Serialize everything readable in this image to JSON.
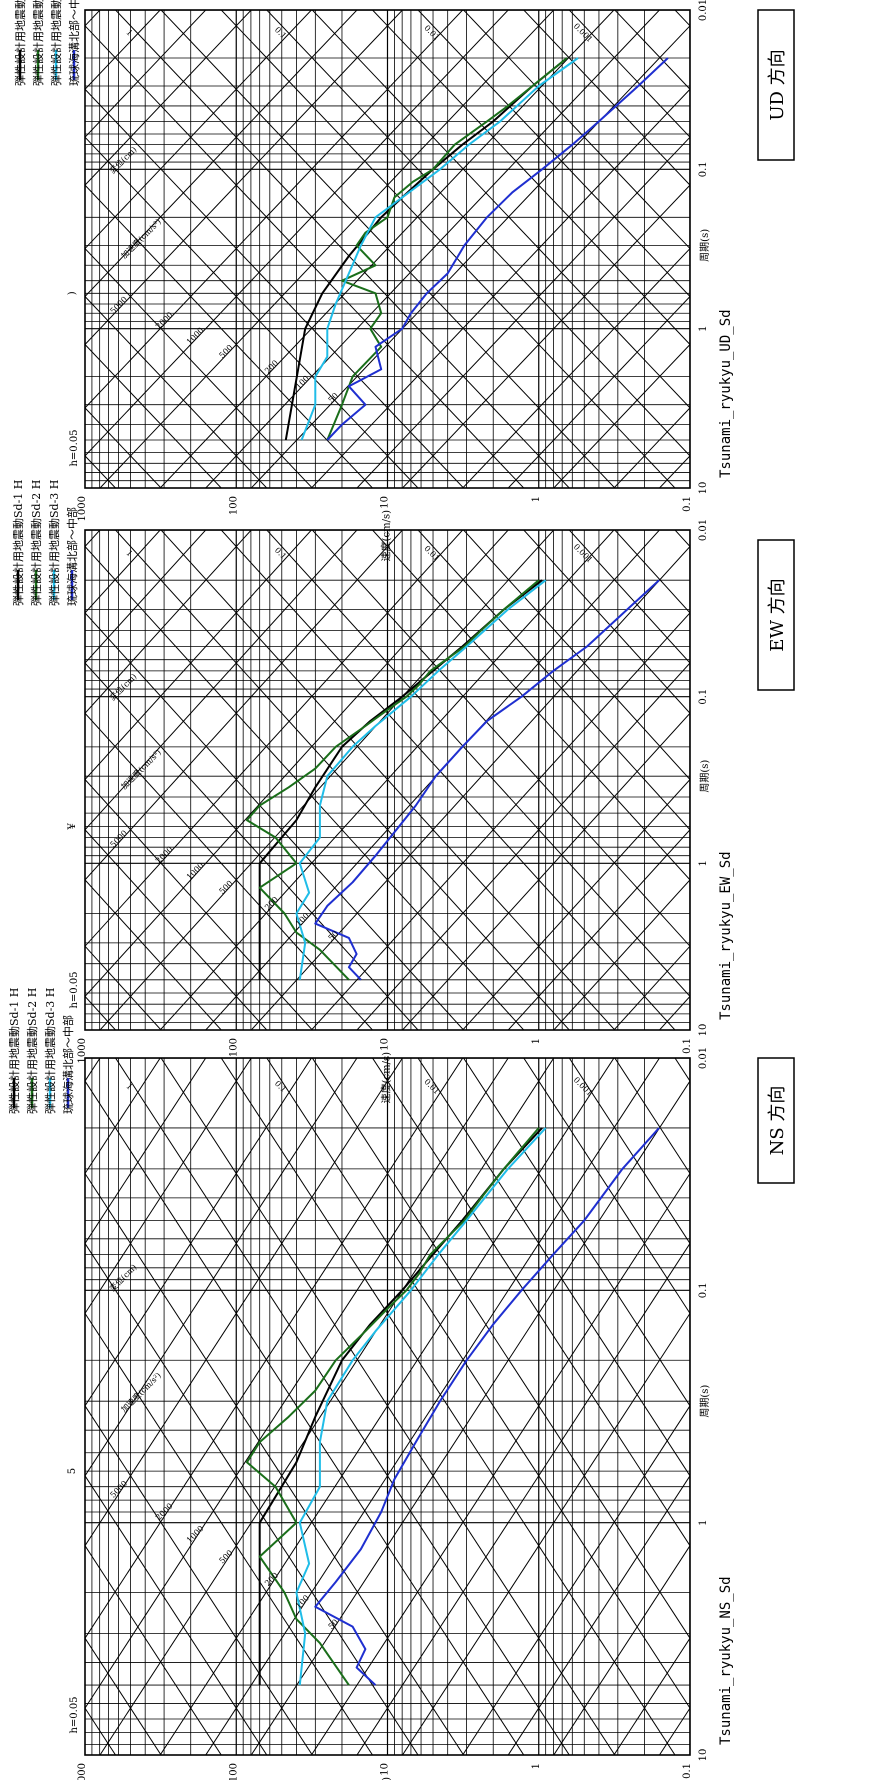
{
  "panels": [
    {
      "id": "ns",
      "direction_label": "NS 方向",
      "record_label": "Tsunami_ryukyu_NS_Sd",
      "damping_label": "h=0.05",
      "stray_mark": "5",
      "legend": [
        {
          "label": "弾性設計用地震動Sd-1 H",
          "color": "#000000"
        },
        {
          "label": "弾性設計用地震動Sd-2 H",
          "color": "#1a6e1a"
        },
        {
          "label": "弾性設計用地震動Sd-3 H",
          "color": "#20bde8"
        },
        {
          "label": "琉球海溝北部～中部",
          "color": "#1f2fd0"
        }
      ]
    },
    {
      "id": "ew",
      "direction_label": "EW 方向",
      "record_label": "Tsunami_ryukyu_EW_Sd",
      "damping_label": "h=0.05",
      "stray_mark": "¥",
      "legend": [
        {
          "label": "弾性設計用地震動Sd-1 H",
          "color": "#000000"
        },
        {
          "label": "弾性設計用地震動Sd-2 H",
          "color": "#1a6e1a"
        },
        {
          "label": "弾性設計用地震動Sd-3 H",
          "color": "#20bde8"
        },
        {
          "label": "琉球海溝北部～中部",
          "color": "#1f2fd0"
        }
      ]
    },
    {
      "id": "ud",
      "direction_label": "UD 方向",
      "record_label": "Tsunami_ryukyu_UD_Sd",
      "damping_label": "h=0.05",
      "stray_mark": ")",
      "legend": [
        {
          "label": "弾性設計用地震動Sd-1 V",
          "color": "#000000"
        },
        {
          "label": "弾性設計用地震動Sd-2 V",
          "color": "#1a6e1a"
        },
        {
          "label": "弾性設計用地震動Sd-3 V",
          "color": "#20bde8"
        },
        {
          "label": "琉球海溝北部～中部",
          "color": "#1f2fd0"
        }
      ]
    }
  ],
  "chart_data": [
    {
      "type": "line",
      "panel": "ns",
      "title": "Tsunami_ryukyu_NS_Sd",
      "xlabel": "周期(s)",
      "ylabel": "速度(cm/s)",
      "x_scale": "log",
      "y_scale": "log",
      "xlim": [
        0.01,
        10
      ],
      "ylim": [
        0.1,
        1000
      ],
      "x_ticks": [
        "0.01",
        "0.1",
        "1",
        "10"
      ],
      "y_ticks": [
        "0.1",
        "1",
        "10",
        "100",
        "1000"
      ],
      "grid": true,
      "tripartite_labels": {
        "acceleration_axis": "加速度(cm/s²)",
        "displacement_axis": "変位(cm)",
        "acceleration_values": [
          "10000",
          "5000",
          "2000",
          "1000",
          "500",
          "200",
          "100",
          "50",
          "20",
          "10",
          "5",
          "2"
        ],
        "displacement_values": [
          "100",
          "10",
          "1",
          "0.1",
          "0.01",
          "0.001"
        ]
      },
      "series": [
        {
          "name": "弾性設計用地震動Sd-1 H",
          "color": "#000000",
          "x": [
            0.02,
            0.03,
            0.05,
            0.07,
            0.1,
            0.14,
            0.2,
            0.35,
            0.55,
            1.0,
            5.0
          ],
          "y": [
            0.95,
            1.7,
            3.2,
            5.0,
            8.0,
            13,
            20,
            30,
            40,
            70,
            70
          ]
        },
        {
          "name": "弾性設計用地震動Sd-2 H",
          "color": "#1a6e1a",
          "x": [
            0.02,
            0.03,
            0.04,
            0.05,
            0.07,
            0.085,
            0.1,
            0.12,
            0.15,
            0.2,
            0.27,
            0.35,
            0.45,
            0.55,
            0.7,
            1.0,
            1.4,
            2.0,
            2.6,
            3.3,
            5.0
          ],
          "y": [
            1.0,
            1.7,
            2.4,
            3.1,
            5.2,
            6.2,
            7.5,
            10,
            14,
            22,
            30,
            45,
            70,
            85,
            55,
            40,
            70,
            48,
            40,
            28,
            18
          ]
        },
        {
          "name": "弾性設計用地震動Sd-3 H",
          "color": "#20bde8",
          "x": [
            0.02,
            0.03,
            0.05,
            0.07,
            0.1,
            0.15,
            0.2,
            0.3,
            0.45,
            0.7,
            1.0,
            1.5,
            2.0,
            3.0,
            5.0
          ],
          "y": [
            0.9,
            1.6,
            3.0,
            4.6,
            7.0,
            12,
            17,
            25,
            28,
            28,
            38,
            33,
            40,
            35,
            38
          ]
        },
        {
          "name": "琉球海溝北部～中部",
          "color": "#1f2fd0",
          "x": [
            0.02,
            0.03,
            0.05,
            0.07,
            0.1,
            0.14,
            0.2,
            0.3,
            0.45,
            0.65,
            0.9,
            1.3,
            1.8,
            2.3,
            2.8,
            3.5,
            4.2,
            5.0
          ],
          "y": [
            0.16,
            0.28,
            0.5,
            0.8,
            1.3,
            2.0,
            3.0,
            4.5,
            6.5,
            9.0,
            11,
            15,
            22,
            30,
            17,
            14,
            16,
            12
          ]
        }
      ]
    },
    {
      "type": "line",
      "panel": "ew",
      "title": "Tsunami_ryukyu_EW_Sd",
      "xlabel": "周期(s)",
      "ylabel": "速度(cm/s)",
      "x_scale": "log",
      "y_scale": "log",
      "xlim": [
        0.01,
        10
      ],
      "ylim": [
        0.1,
        1000
      ],
      "x_ticks": [
        "0.01",
        "0.1",
        "1",
        "10"
      ],
      "y_ticks": [
        "0.1",
        "1",
        "10",
        "100",
        "1000"
      ],
      "grid": true,
      "tripartite_labels": {
        "acceleration_axis": "加速度(cm/s²)",
        "displacement_axis": "変位(cm)",
        "acceleration_values": [
          "10000",
          "5000",
          "2000",
          "1000",
          "500",
          "200",
          "100",
          "50",
          "20",
          "10",
          "5",
          "2"
        ],
        "displacement_values": [
          "100",
          "10",
          "1",
          "0.1",
          "0.01",
          "0.001"
        ]
      },
      "series": [
        {
          "name": "弾性設計用地震動Sd-1 H",
          "color": "#000000",
          "x": [
            0.02,
            0.03,
            0.05,
            0.07,
            0.1,
            0.14,
            0.2,
            0.35,
            0.55,
            1.0,
            5.0
          ],
          "y": [
            0.95,
            1.7,
            3.2,
            5.0,
            8.0,
            13,
            20,
            30,
            40,
            70,
            70
          ]
        },
        {
          "name": "弾性設計用地震動Sd-2 H",
          "color": "#1a6e1a",
          "x": [
            0.02,
            0.03,
            0.04,
            0.05,
            0.07,
            0.085,
            0.1,
            0.12,
            0.15,
            0.2,
            0.27,
            0.35,
            0.45,
            0.55,
            0.7,
            1.0,
            1.4,
            2.0,
            2.6,
            3.3,
            5.0
          ],
          "y": [
            1.0,
            1.7,
            2.4,
            3.1,
            5.2,
            6.2,
            7.5,
            10,
            14,
            22,
            30,
            45,
            70,
            85,
            55,
            40,
            70,
            48,
            40,
            28,
            18
          ]
        },
        {
          "name": "弾性設計用地震動Sd-3 H",
          "color": "#20bde8",
          "x": [
            0.02,
            0.03,
            0.05,
            0.07,
            0.1,
            0.15,
            0.2,
            0.3,
            0.45,
            0.7,
            1.0,
            1.5,
            2.0,
            3.0,
            5.0
          ],
          "y": [
            0.9,
            1.6,
            3.0,
            4.6,
            7.0,
            12,
            17,
            25,
            28,
            28,
            38,
            33,
            40,
            35,
            38
          ]
        },
        {
          "name": "琉球海溝北部～中部",
          "color": "#1f2fd0",
          "x": [
            0.02,
            0.03,
            0.05,
            0.07,
            0.1,
            0.14,
            0.2,
            0.3,
            0.45,
            0.65,
            0.9,
            1.3,
            1.8,
            2.3,
            2.8,
            3.5,
            4.2,
            5.0
          ],
          "y": [
            0.16,
            0.26,
            0.48,
            0.8,
            1.3,
            2.2,
            3.2,
            4.8,
            6.5,
            9.0,
            12,
            17,
            25,
            30,
            18,
            16,
            18,
            15
          ]
        }
      ]
    },
    {
      "type": "line",
      "panel": "ud",
      "title": "Tsunami_ryukyu_UD_Sd",
      "xlabel": "周期(s)",
      "ylabel": "速度(cm/s)",
      "x_scale": "log",
      "y_scale": "log",
      "xlim": [
        0.01,
        10
      ],
      "ylim": [
        0.1,
        1000
      ],
      "x_ticks": [
        "0.01",
        "0.1",
        "1",
        "10"
      ],
      "y_ticks": [
        "0.1",
        "1",
        "10",
        "100",
        "1000"
      ],
      "grid": true,
      "tripartite_labels": {
        "acceleration_axis": "加速度(cm/s²)",
        "displacement_axis": "変位(cm)",
        "acceleration_values": [
          "10000",
          "5000",
          "2000",
          "1000",
          "500",
          "200",
          "100",
          "50",
          "20",
          "10",
          "5",
          "2"
        ],
        "displacement_values": [
          "100",
          "10",
          "1",
          "0.1",
          "0.01",
          "0.001"
        ]
      },
      "series": [
        {
          "name": "弾性設計用地震動Sd-1 V",
          "color": "#000000",
          "x": [
            0.02,
            0.03,
            0.05,
            0.07,
            0.1,
            0.15,
            0.2,
            0.35,
            0.6,
            1.0,
            5.0
          ],
          "y": [
            0.65,
            1.1,
            2.0,
            3.2,
            5.0,
            8.0,
            11,
            18,
            27,
            35,
            47
          ]
        },
        {
          "name": "弾性設計用地震動Sd-2 V",
          "color": "#1a6e1a",
          "x": [
            0.02,
            0.03,
            0.04,
            0.05,
            0.07,
            0.1,
            0.12,
            0.15,
            0.2,
            0.25,
            0.3,
            0.4,
            0.5,
            0.6,
            0.8,
            1.0,
            1.3,
            2.0,
            3.0,
            5.0
          ],
          "y": [
            0.65,
            1.1,
            1.6,
            2.2,
            3.6,
            5.0,
            6.8,
            9.0,
            10,
            14,
            16,
            12,
            20,
            12,
            11,
            13,
            11,
            17,
            20,
            25
          ]
        },
        {
          "name": "弾性設計用地震動Sd-3 V",
          "color": "#20bde8",
          "x": [
            0.02,
            0.03,
            0.05,
            0.07,
            0.1,
            0.15,
            0.2,
            0.3,
            0.45,
            0.7,
            1.0,
            1.5,
            2.0,
            3.0,
            5.0
          ],
          "y": [
            0.55,
            1.0,
            1.8,
            2.9,
            4.5,
            8.0,
            12,
            15,
            18,
            22,
            25,
            25,
            30,
            30,
            37
          ]
        },
        {
          "name": "琉球海溝北部～中部",
          "color": "#1f2fd0",
          "x": [
            0.02,
            0.03,
            0.05,
            0.07,
            0.1,
            0.14,
            0.2,
            0.3,
            0.45,
            0.6,
            0.8,
            1.0,
            1.3,
            1.8,
            2.3,
            3.0,
            4.0,
            5.0
          ],
          "y": [
            0.14,
            0.22,
            0.4,
            0.6,
            0.95,
            1.5,
            2.2,
            3.1,
            4.0,
            5.5,
            7.0,
            8.0,
            12,
            11,
            18,
            14,
            20,
            25
          ]
        }
      ]
    }
  ]
}
